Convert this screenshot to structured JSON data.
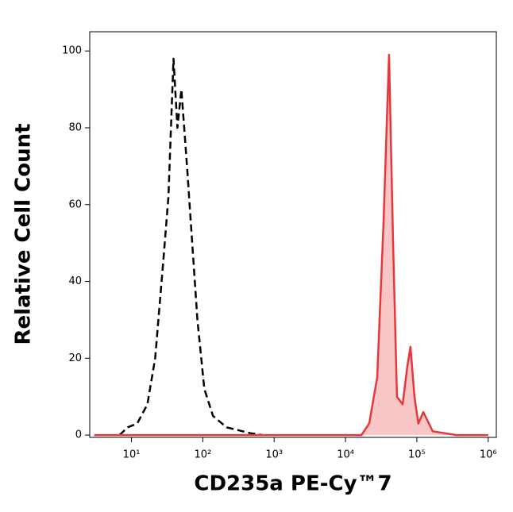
{
  "chart_data": {
    "type": "line",
    "x_label": "CD235a PE-Cy™7",
    "y_label": "Relative Cell Count",
    "x_scale": "log",
    "xlim": [
      2.6,
      1300000
    ],
    "ylim": [
      -0.6,
      105
    ],
    "xticks": [
      {
        "value": 10,
        "label": "10¹"
      },
      {
        "value": 100,
        "label": "10²"
      },
      {
        "value": 1000,
        "label": "10³"
      },
      {
        "value": 10000,
        "label": "10⁴"
      },
      {
        "value": 100000,
        "label": "10⁵"
      },
      {
        "value": 1000000,
        "label": "10⁶"
      }
    ],
    "yticks": [
      0,
      20,
      40,
      60,
      80,
      100
    ],
    "series": [
      {
        "color": "#000000",
        "dashed": true,
        "filled": false,
        "x": [
          6.8,
          8.8,
          12,
          16.7,
          21.5,
          27.8,
          33,
          38.8,
          44,
          50,
          60,
          68,
          84,
          105,
          139,
          215,
          464,
          681
        ],
        "values": [
          0,
          2,
          3,
          8,
          20,
          45,
          62,
          98,
          80,
          90,
          70,
          55,
          30,
          12,
          5,
          2,
          0.5,
          0
        ]
      },
      {
        "color": "#e8373a",
        "dashed": false,
        "filled": true,
        "fill_color": "#f9c6c7",
        "x": [
          3,
          16700,
          21500,
          27800,
          34100,
          40800,
          46400,
          52700,
          63100,
          73600,
          81500,
          92600,
          105000,
          123000,
          139000,
          167000,
          245000,
          359000,
          1000000
        ],
        "values": [
          0,
          0,
          3,
          15,
          55,
          99,
          50,
          10,
          8,
          18,
          23,
          10,
          3,
          6,
          4,
          1,
          0.5,
          0,
          0
        ]
      }
    ]
  }
}
